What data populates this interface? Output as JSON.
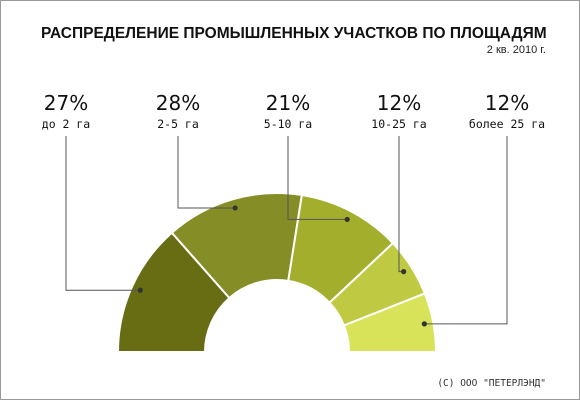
{
  "chart_data": {
    "type": "pie",
    "title": "РАСПРЕДЕЛЕНИЕ ПРОМЫШЛЕННЫХ УЧАСТКОВ ПО ПЛОЩАДЯМ",
    "subtitle": "2 кв. 2010 г.",
    "style": "half-donut",
    "slices": [
      {
        "label": "до 2 га",
        "value": 27,
        "value_text": "27%",
        "color": "#686d14"
      },
      {
        "label": "2-5 га",
        "value": 28,
        "value_text": "28%",
        "color": "#858d27"
      },
      {
        "label": "5-10 га",
        "value": 21,
        "value_text": "21%",
        "color": "#a3ae2d"
      },
      {
        "label": "10-25 га",
        "value": 12,
        "value_text": "12%",
        "color": "#bfca42"
      },
      {
        "label": "более 25 га",
        "value": 12,
        "value_text": "12%",
        "color": "#d8e35a"
      }
    ]
  },
  "footer": {
    "copyright": "(C) ООО \"ПЕТЕРЛЭНД\""
  }
}
